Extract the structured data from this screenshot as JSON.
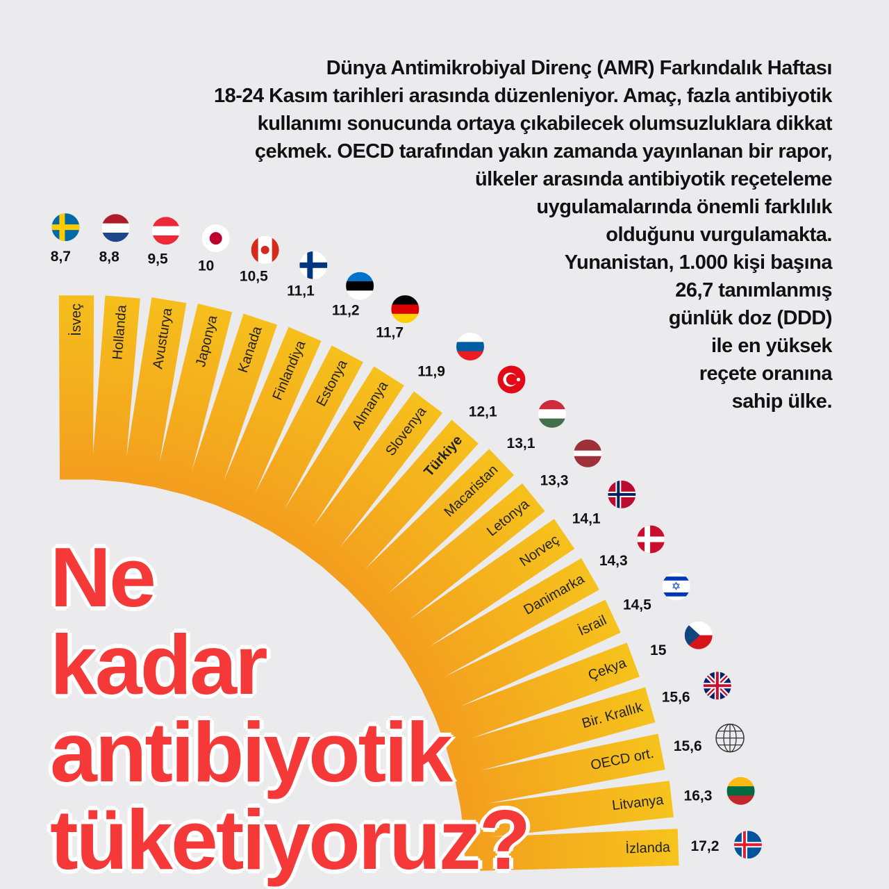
{
  "intro_lines": [
    "Dünya Antimikrobiyal Direnç (AMR) Farkındalık Haftası",
    "18-24 Kasım tarihleri arasında düzenleniyor. Amaç, fazla antibiyotik",
    "kullanımı sonucunda ortaya çıkabilecek olumsuzluklara dikkat",
    "çekmek. OECD tarafından yakın zamanda yayınlanan bir rapor,",
    "ülkeler arasında antibiyotik reçeteleme",
    "uygulamalarında önemli farklılık",
    "olduğunu vurgulamakta.",
    "Yunanistan, 1.000 kişi başına",
    "26,7 tanımlanmış",
    "günlük doz (DDD)",
    "ile en yüksek",
    "reçete oranına",
    "sahip ülke."
  ],
  "title_lines": [
    "Ne",
    "kadar",
    "antibiyotik",
    "tüketiyoruz?"
  ],
  "colors": {
    "bar_inner": "#f5a623",
    "bar_outer": "#f5c518",
    "title": "#f53838",
    "text": "#111111"
  },
  "chart_data": {
    "type": "bar",
    "layout": "radial",
    "unit": "DDD per 1,000 people per day",
    "categories": [
      "İsveç",
      "Hollanda",
      "Avusturya",
      "Japonya",
      "Kanada",
      "Finlandiya",
      "Estonya",
      "Almanya",
      "Slovenya",
      "Türkiye",
      "Macaristan",
      "Letonya",
      "Norveç",
      "Danimarka",
      "İsrail",
      "Çekya",
      "Bir. Krallık",
      "OECD ort.",
      "Litvanya",
      "İzlanda"
    ],
    "values": [
      8.7,
      8.8,
      9.5,
      10,
      10.5,
      11.1,
      11.2,
      11.7,
      11.9,
      12.1,
      13.1,
      13.3,
      14.1,
      14.3,
      14.5,
      15,
      15.6,
      15.6,
      16.3,
      17.2
    ],
    "value_labels": [
      "8,7",
      "8,8",
      "9,5",
      "10",
      "10,5",
      "11,1",
      "11,2",
      "11,7",
      "11,9",
      "12,1",
      "13,1",
      "13,3",
      "14,1",
      "14,3",
      "14,5",
      "15",
      "15,6",
      "15,6",
      "16,3",
      "17,2"
    ],
    "icons": [
      "flag-sweden",
      "flag-netherlands",
      "flag-austria",
      "flag-japan",
      "flag-canada",
      "flag-finland",
      "flag-estonia",
      "flag-germany",
      "flag-slovenia",
      "flag-turkey",
      "flag-hungary",
      "flag-latvia",
      "flag-norway",
      "flag-denmark",
      "flag-israel",
      "flag-czechia",
      "flag-uk",
      "globe-icon",
      "flag-lithuania",
      "flag-iceland"
    ],
    "highlight": "Türkiye"
  }
}
